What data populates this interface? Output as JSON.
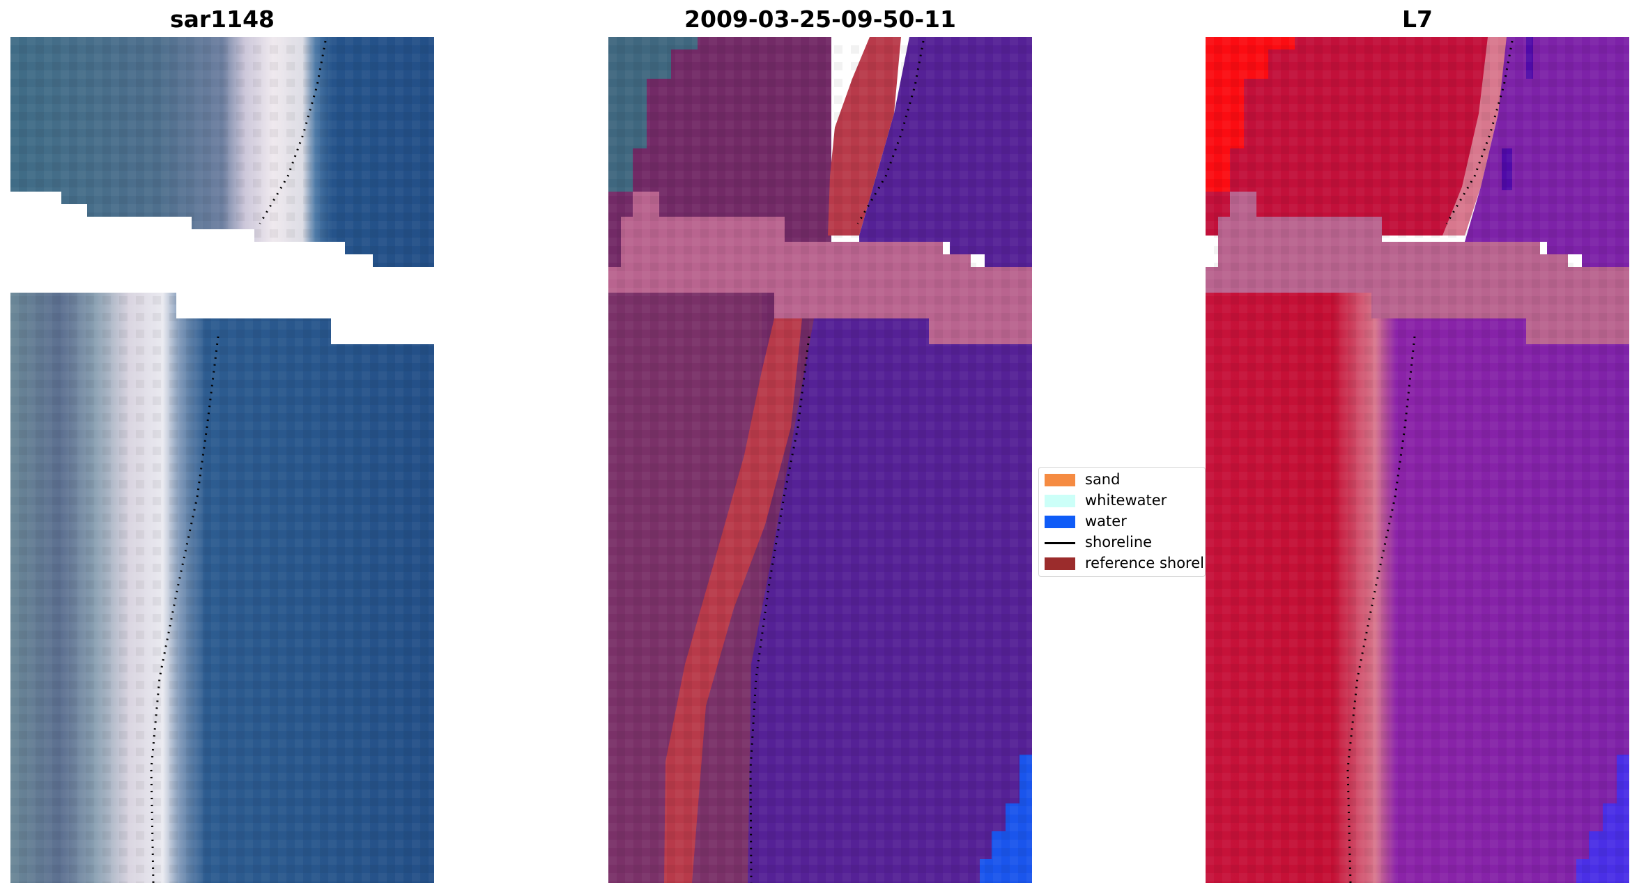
{
  "panels": [
    {
      "title": "sar1148"
    },
    {
      "title": "2009-03-25-09-50-11"
    },
    {
      "title": "L7"
    }
  ],
  "legend": {
    "items": [
      {
        "label": "sand",
        "color": "#f58b42",
        "kind": "patch"
      },
      {
        "label": "whitewater",
        "color": "#ccfff8",
        "kind": "patch"
      },
      {
        "label": "water",
        "color": "#0f5cf7",
        "kind": "patch"
      },
      {
        "label": "shoreline",
        "color": "#000000",
        "kind": "line"
      },
      {
        "label": "reference shoreli",
        "color": "#9b2c2c",
        "kind": "patch"
      }
    ]
  }
}
